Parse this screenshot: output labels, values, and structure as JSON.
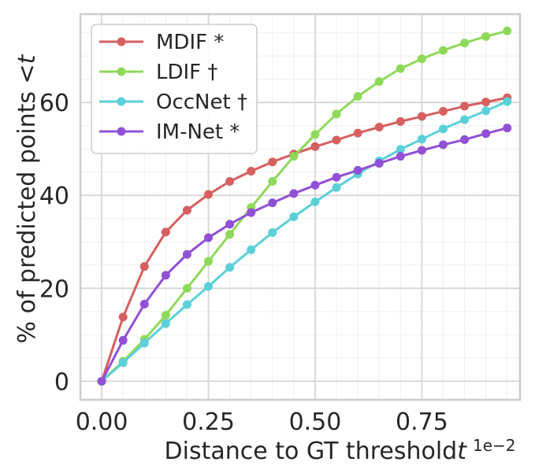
{
  "chart_data": {
    "type": "line",
    "xlabel": "Distance to GT threshold",
    "xlabel_symbol": "t",
    "x_exponent": "1e−2",
    "ylabel": "% of predicted points <",
    "ylabel_symbol": "t",
    "xlim": [
      -0.05,
      0.98
    ],
    "ylim": [
      -4,
      79
    ],
    "x_ticks": [
      "0.00",
      "0.25",
      "0.50",
      "0.75"
    ],
    "x_tick_values": [
      0.0,
      0.25,
      0.5,
      0.75
    ],
    "y_ticks": [
      "0",
      "20",
      "40",
      "60"
    ],
    "y_tick_values": [
      0,
      20,
      40,
      60
    ],
    "grid": true,
    "minor_grid": true,
    "legend_position": "upper-left",
    "x": [
      0.0,
      0.05,
      0.1,
      0.15,
      0.2,
      0.25,
      0.3,
      0.35,
      0.4,
      0.45,
      0.5,
      0.55,
      0.6,
      0.65,
      0.7,
      0.75,
      0.8,
      0.85,
      0.9,
      0.95
    ],
    "series": [
      {
        "name": "MDIF *",
        "color": "#d65f5f",
        "values": [
          0.0,
          13.8,
          24.7,
          32.1,
          36.8,
          40.2,
          43.0,
          45.2,
          47.2,
          48.9,
          50.5,
          51.9,
          53.4,
          54.7,
          55.9,
          57.0,
          58.1,
          59.2,
          60.1,
          61.0
        ]
      },
      {
        "name": "LDIF †",
        "color": "#8fd95a",
        "values": [
          0.0,
          4.3,
          9.0,
          14.2,
          20.0,
          25.8,
          31.6,
          37.4,
          43.0,
          48.4,
          53.1,
          57.5,
          61.3,
          64.5,
          67.3,
          69.4,
          71.2,
          72.8,
          74.2,
          75.4
        ]
      },
      {
        "name": "OccNet †",
        "color": "#5bd0d9",
        "values": [
          0.0,
          4.0,
          8.2,
          12.4,
          16.5,
          20.4,
          24.5,
          28.3,
          32.0,
          35.4,
          38.6,
          41.7,
          44.6,
          47.4,
          49.9,
          52.1,
          54.3,
          56.3,
          58.2,
          60.2
        ]
      },
      {
        "name": "IM-Net *",
        "color": "#9150d6",
        "values": [
          0.0,
          8.8,
          16.6,
          22.8,
          27.3,
          30.9,
          33.8,
          36.3,
          38.4,
          40.4,
          42.2,
          43.9,
          45.4,
          46.9,
          48.4,
          49.7,
          50.9,
          52.0,
          53.3,
          54.5
        ]
      }
    ]
  }
}
